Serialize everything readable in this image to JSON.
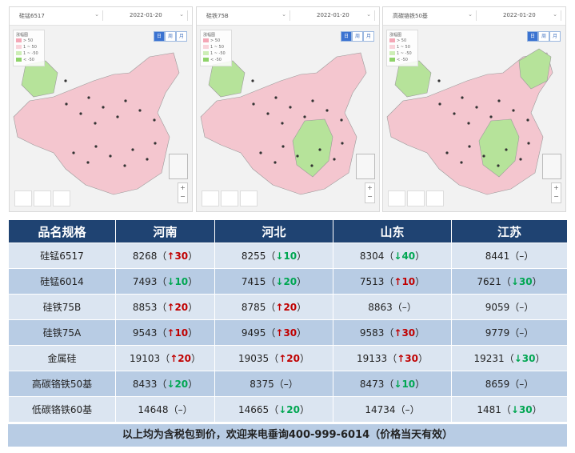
{
  "panels": [
    {
      "product": "硅锰6517",
      "date": "2022-01-20",
      "legend_title": "涨幅图",
      "legend": [
        "> 50",
        "1 ~ 50",
        "1 ~ -50",
        "< -50"
      ],
      "view_buttons": [
        "日",
        "周",
        "月"
      ]
    },
    {
      "product": "硅铁75B",
      "date": "2022-01-20",
      "legend_title": "涨幅图",
      "legend": [
        "> 50",
        "1 ~ 50",
        "1 ~ -50",
        "< -50"
      ],
      "view_buttons": [
        "日",
        "周",
        "月"
      ]
    },
    {
      "product": "高碳铬铁50基",
      "date": "2022-01-20",
      "legend_title": "涨幅图",
      "legend": [
        "> 50",
        "1 ~ 50",
        "1 ~ -50",
        "< -50"
      ],
      "view_buttons": [
        "日",
        "周",
        "月"
      ]
    }
  ],
  "colors": {
    "header_bg": "#1f4372",
    "row_light": "#dbe5f1",
    "row_dark": "#b8cce4",
    "up": "#c00000",
    "down": "#00a651",
    "map_up": "#f4c6cf",
    "map_down": "#b6e39a"
  },
  "table": {
    "headers": [
      "品名规格",
      "河南",
      "河北",
      "山东",
      "江苏"
    ],
    "rows": [
      {
        "name": "硅锰6517",
        "cells": [
          {
            "price": "8268",
            "dir": "up",
            "chg": "30"
          },
          {
            "price": "8255",
            "dir": "down",
            "chg": "10"
          },
          {
            "price": "8304",
            "dir": "down",
            "chg": "40"
          },
          {
            "price": "8441",
            "dir": "flat",
            "chg": "–"
          }
        ]
      },
      {
        "name": "硅锰6014",
        "cells": [
          {
            "price": "7493",
            "dir": "down",
            "chg": "10"
          },
          {
            "price": "7415",
            "dir": "down",
            "chg": "20"
          },
          {
            "price": "7513",
            "dir": "up",
            "chg": "10"
          },
          {
            "price": "7621",
            "dir": "down",
            "chg": "30"
          }
        ]
      },
      {
        "name": "硅铁75B",
        "cells": [
          {
            "price": "8853",
            "dir": "up",
            "chg": "20"
          },
          {
            "price": "8785",
            "dir": "up",
            "chg": "20"
          },
          {
            "price": "8863",
            "dir": "flat",
            "chg": "–"
          },
          {
            "price": "9059",
            "dir": "flat",
            "chg": "–"
          }
        ]
      },
      {
        "name": "硅铁75A",
        "cells": [
          {
            "price": "9543",
            "dir": "up",
            "chg": "10"
          },
          {
            "price": "9495",
            "dir": "up",
            "chg": "30"
          },
          {
            "price": "9583",
            "dir": "up",
            "chg": "30"
          },
          {
            "price": "9779",
            "dir": "flat",
            "chg": "–"
          }
        ]
      },
      {
        "name": "金属硅",
        "cells": [
          {
            "price": "19103",
            "dir": "up",
            "chg": "20"
          },
          {
            "price": "19035",
            "dir": "up",
            "chg": "20"
          },
          {
            "price": "19133",
            "dir": "up",
            "chg": "30"
          },
          {
            "price": "19231",
            "dir": "down",
            "chg": "30"
          }
        ]
      },
      {
        "name": "高碳铬铁50基",
        "cells": [
          {
            "price": "8433",
            "dir": "down",
            "chg": "20"
          },
          {
            "price": "8375",
            "dir": "flat",
            "chg": "–"
          },
          {
            "price": "8473",
            "dir": "down",
            "chg": "10"
          },
          {
            "price": "8659",
            "dir": "flat",
            "chg": "–"
          }
        ]
      },
      {
        "name": "低碳铬铁60基",
        "cells": [
          {
            "price": "14648",
            "dir": "flat",
            "chg": "–"
          },
          {
            "price": "14665",
            "dir": "down",
            "chg": "20"
          },
          {
            "price": "14734",
            "dir": "flat",
            "chg": "–"
          },
          {
            "price": "1481",
            "dir": "down",
            "chg": "30"
          }
        ]
      }
    ],
    "arrows": {
      "up": "🡑",
      "down": "🡓"
    }
  },
  "footer": "以上均为含税包到价，欢迎来电垂询400-999-6014（价格当天有效）"
}
